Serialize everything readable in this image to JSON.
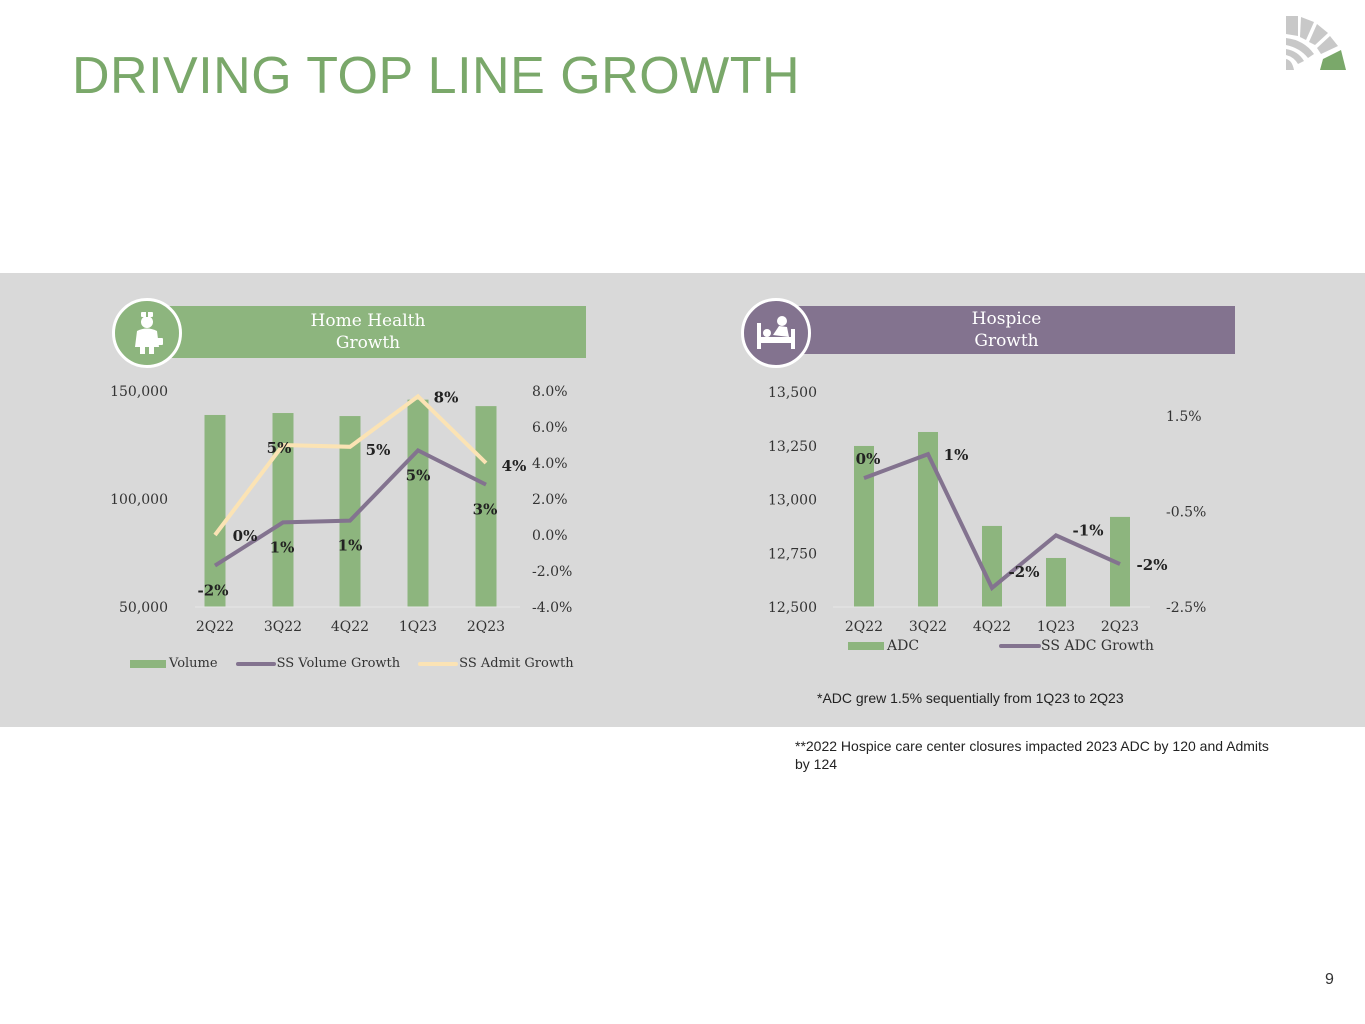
{
  "title": "DRIVING TOP LINE GROWTH",
  "page_number": "9",
  "colors": {
    "green": "#8db57e",
    "purple": "#83738f",
    "cream": "#fbe3b4",
    "band": "#d9d9d9",
    "title": "#7aa86a"
  },
  "home_health": {
    "banner_line1": "Home Health",
    "banner_line2": "Growth",
    "icon": "nurse-icon"
  },
  "hospice": {
    "banner_line1": "Hospice",
    "banner_line2": "Growth",
    "icon": "hospital-bed-icon"
  },
  "chart_data": [
    {
      "type": "bar+line",
      "categories": [
        "2Q22",
        "3Q22",
        "4Q22",
        "1Q23",
        "2Q23"
      ],
      "y_left": {
        "ylim": [
          50000,
          150000
        ],
        "ticks": [
          "50,000",
          "100,000",
          "150,000"
        ],
        "tick_values": [
          50000,
          100000,
          150000
        ]
      },
      "y_right": {
        "ylim": [
          -4,
          8
        ],
        "ticks": [
          "-4.0%",
          "-2.0%",
          "0.0%",
          "2.0%",
          "4.0%",
          "6.0%",
          "8.0%"
        ],
        "tick_values": [
          -4,
          -2,
          0,
          2,
          4,
          6,
          8
        ]
      },
      "series": [
        {
          "name": "Volume",
          "type": "bar",
          "axis": "left",
          "values": [
            138900,
            139800,
            138400,
            146000,
            143000
          ],
          "labels": []
        },
        {
          "name": "SS Volume Growth",
          "type": "line",
          "axis": "right",
          "values": [
            -1.7,
            0.7,
            0.8,
            4.7,
            2.8
          ],
          "labels": [
            "-2%",
            "1%",
            "1%",
            "5%",
            "3%"
          ]
        },
        {
          "name": "SS Admit Growth",
          "type": "line",
          "axis": "right",
          "values": [
            0.0,
            5.0,
            4.9,
            7.7,
            4.0
          ],
          "labels": [
            "0%",
            "5%",
            "5%",
            "8%",
            "4%"
          ]
        }
      ],
      "legend": "bottom",
      "grid": false
    },
    {
      "type": "bar+line",
      "categories": [
        "2Q22",
        "3Q22",
        "4Q22",
        "1Q23",
        "2Q23"
      ],
      "y_left": {
        "ylim": [
          12500,
          13500
        ],
        "ticks": [
          "12,500",
          "12,750",
          "13,000",
          "13,250",
          "13,500"
        ],
        "tick_values": [
          12500,
          12750,
          13000,
          13250,
          13500
        ]
      },
      "y_right": {
        "ylim": [
          -2.5,
          1.5
        ],
        "ticks": [
          "-2.5%",
          "-0.5%",
          "1.5%"
        ],
        "tick_values": [
          -2.5,
          -0.5,
          1.5
        ]
      },
      "series": [
        {
          "name": "ADC",
          "type": "bar",
          "axis": "left",
          "values": [
            13249,
            13314,
            12877,
            12728,
            12919
          ],
          "labels": []
        },
        {
          "name": "SS ADC Growth",
          "type": "line",
          "axis": "right",
          "values": [
            0.2,
            0.7,
            -2.1,
            -1.0,
            -1.6
          ],
          "labels": [
            "0%",
            "1%",
            "-2%",
            "-1%",
            "-2%"
          ]
        }
      ],
      "legend": "bottom",
      "grid": false
    }
  ],
  "notes": {
    "adc_note": "*ADC grew 1.5% sequentially from 1Q23 to 2Q23",
    "closure_note": "**2022 Hospice care center closures impacted 2023 ADC by 120 and Admits by 124"
  }
}
